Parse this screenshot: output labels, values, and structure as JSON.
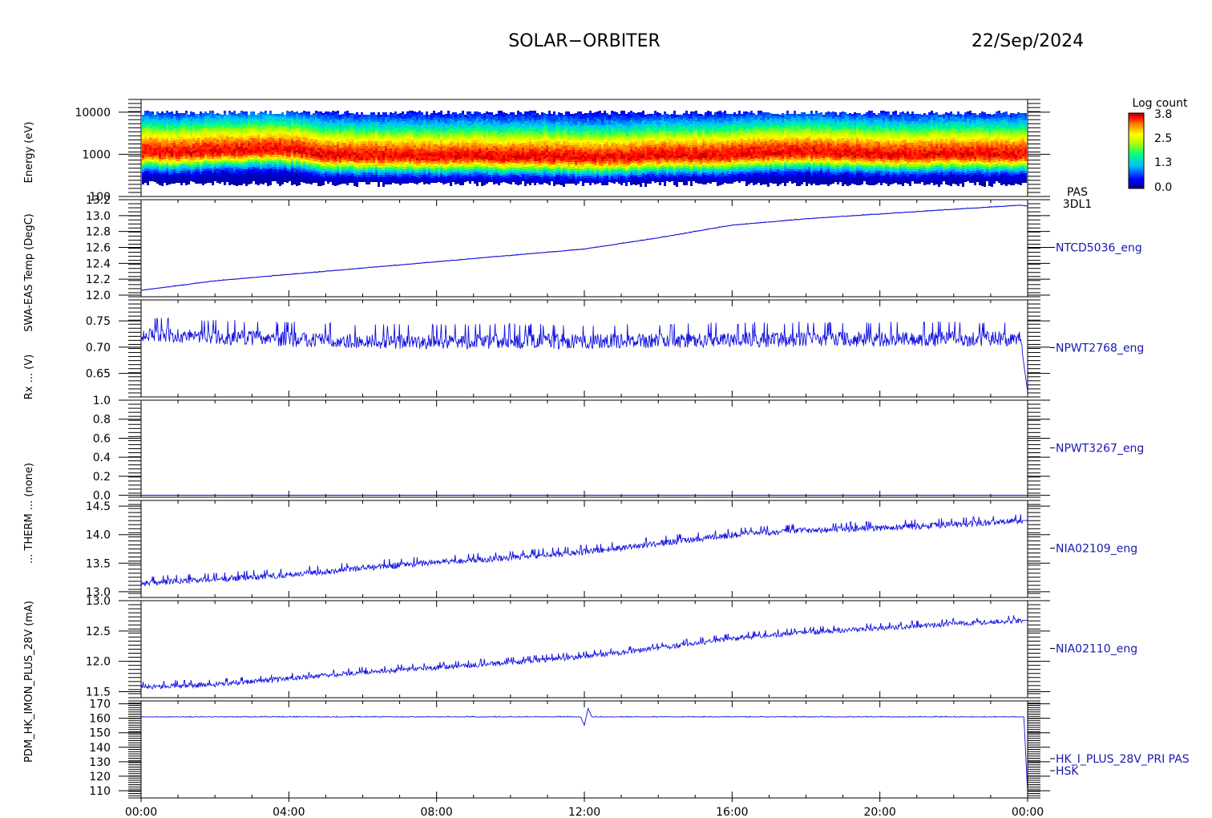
{
  "header": {
    "mission": "SOLAR−ORBITER",
    "date": "22/Sep/2024"
  },
  "colorbar": {
    "title": "Log count",
    "ticks": [
      "3.8",
      "2.5",
      "1.3",
      "0.0"
    ]
  },
  "x_axis": {
    "ticks": [
      "00:00",
      "04:00",
      "08:00",
      "12:00",
      "16:00",
      "20:00",
      "00:00"
    ]
  },
  "y_axis_labels_overlapping": [
    "Energy (eV)",
    "SWA-EAS Temp (DegC)",
    "Rx ... (V)",
    "... THERM ... (none)",
    "PDM_HK_IMON_PLUS_28V (mA)"
  ],
  "chart_data": [
    {
      "type": "heatmap",
      "name": "spectrogram",
      "label": [
        "PAS",
        "3DL1"
      ],
      "ylabel": "(eV)",
      "yscale": "log",
      "ylim": [
        100,
        20000
      ],
      "yticks": [
        "10000",
        "1000",
        "100"
      ],
      "color_scale": "rainbow",
      "clim": [
        0.0,
        3.8
      ],
      "peak_energy_profile": {
        "x_hours": [
          0,
          1,
          2,
          3,
          4,
          5,
          6,
          7,
          8,
          9,
          10,
          11,
          12,
          13,
          14,
          15,
          16,
          17,
          18,
          19,
          20,
          21,
          22,
          23,
          24
        ],
        "peak_eV": [
          1150,
          1100,
          1250,
          1300,
          1300,
          950,
          950,
          950,
          900,
          950,
          900,
          900,
          850,
          850,
          950,
          950,
          1000,
          1100,
          1150,
          1100,
          1000,
          1000,
          1050,
          1000,
          1050
        ]
      }
    },
    {
      "type": "line",
      "label": "NTCD5036_eng",
      "ylim": [
        11.98,
        13.2
      ],
      "yticks": [
        12.0,
        12.2,
        12.4,
        12.6,
        12.8,
        13.0,
        13.2
      ],
      "ytick_labels": [
        "12.0",
        "12.2",
        "12.4",
        "12.6",
        "12.8",
        "13.0",
        "13.2"
      ],
      "x_hours": [
        0,
        2,
        4,
        6,
        8,
        10,
        12,
        14,
        16,
        18,
        20,
        22,
        23.8,
        24
      ],
      "values": [
        12.06,
        12.18,
        12.26,
        12.34,
        12.42,
        12.5,
        12.58,
        12.72,
        12.88,
        12.96,
        13.02,
        13.08,
        13.13,
        13.12
      ],
      "noise": 0.004
    },
    {
      "type": "line",
      "label": "NPWT2768_eng",
      "ylim": [
        0.605,
        0.79
      ],
      "yticks": [
        0.65,
        0.7,
        0.75
      ],
      "ytick_labels": [
        "0.65",
        "0.70",
        "0.75"
      ],
      "x_hours": [
        0,
        1,
        3,
        6,
        9,
        12,
        15,
        18,
        21,
        23.8,
        24
      ],
      "values": [
        0.725,
        0.722,
        0.718,
        0.712,
        0.712,
        0.712,
        0.714,
        0.716,
        0.716,
        0.718,
        0.615
      ],
      "noise": 0.022
    },
    {
      "type": "line",
      "label": "NPWT3267_eng",
      "ylim": [
        -0.02,
        1.0
      ],
      "yticks": [
        0.0,
        0.2,
        0.4,
        0.6,
        0.8,
        1.0
      ],
      "ytick_labels": [
        "0.0",
        "0.2",
        "0.4",
        "0.6",
        "0.8",
        "1.0"
      ],
      "x_hours": [
        0,
        24
      ],
      "values": [
        0.0,
        0.0
      ],
      "noise": 0.0
    },
    {
      "type": "line",
      "label": "NIA02109_eng",
      "ylim": [
        12.9,
        14.6
      ],
      "yticks": [
        13.0,
        13.5,
        14.0,
        14.5
      ],
      "ytick_labels": [
        "13.0",
        "13.5",
        "14.0",
        "14.5"
      ],
      "x_hours": [
        0,
        2,
        4,
        6,
        8,
        10,
        12,
        14,
        16,
        18,
        20,
        22,
        24
      ],
      "values": [
        13.15,
        13.22,
        13.3,
        13.42,
        13.52,
        13.6,
        13.7,
        13.85,
        14.0,
        14.08,
        14.12,
        14.18,
        14.25
      ],
      "noise": 0.08
    },
    {
      "type": "line",
      "label": "NIA02110_eng",
      "ylim": [
        11.4,
        13.0
      ],
      "yticks": [
        11.5,
        12.0,
        12.5,
        13.0
      ],
      "ytick_labels": [
        "11.5",
        "12.0",
        "12.5",
        "13.0"
      ],
      "x_hours": [
        0,
        2,
        4,
        6,
        8,
        10,
        12,
        14,
        16,
        18,
        20,
        22,
        24
      ],
      "values": [
        11.58,
        11.62,
        11.72,
        11.82,
        11.9,
        11.98,
        12.08,
        12.22,
        12.38,
        12.48,
        12.55,
        12.62,
        12.68
      ],
      "noise": 0.06
    },
    {
      "type": "line",
      "label": [
        "HK_I_PLUS_28V_PRI PAS",
        "HSK"
      ],
      "ylim": [
        105,
        172
      ],
      "yticks": [
        110,
        120,
        130,
        140,
        150,
        160,
        170
      ],
      "ytick_labels": [
        "110",
        "120",
        "130",
        "140",
        "150",
        "160",
        "170"
      ],
      "x_hours": [
        0,
        11.9,
        12.0,
        12.1,
        12.2,
        23.9,
        24
      ],
      "values": [
        161,
        161,
        155,
        167,
        161,
        161,
        108
      ],
      "noise": 0.3
    }
  ]
}
